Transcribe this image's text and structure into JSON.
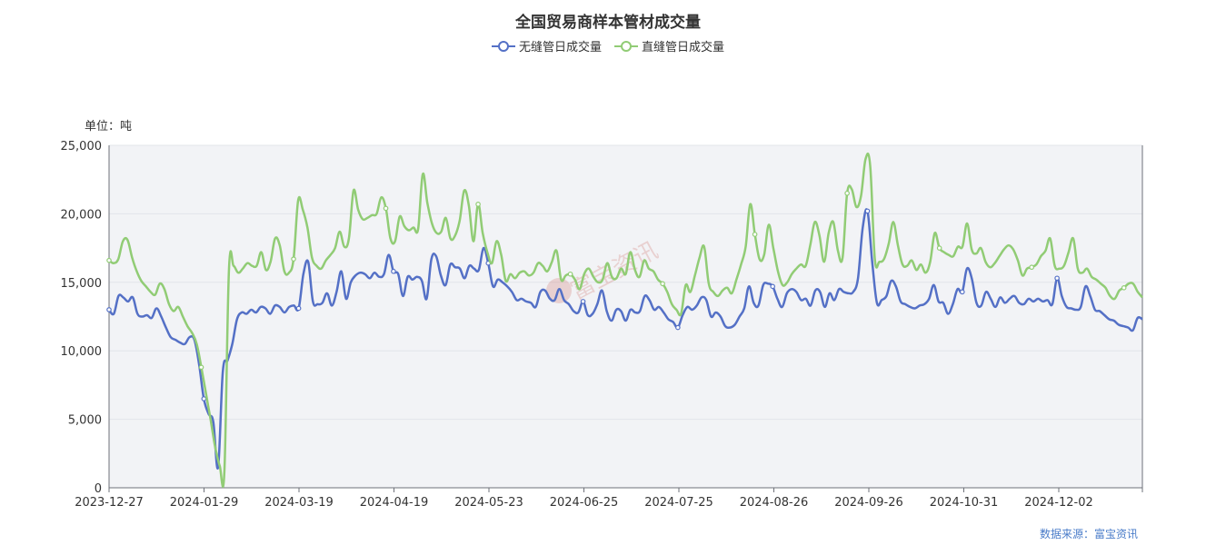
{
  "chart_title": "全国贸易商样本管材成交量",
  "unit_label": "单位：吨",
  "source_label": "数据来源：富宝资讯",
  "watermark": "富宝资讯",
  "chart_data": {
    "type": "line",
    "title": "全国贸易商样本管材成交量",
    "ylabel": "单位：吨",
    "xlabel": "",
    "ylim": [
      0,
      25000
    ],
    "yticks": [
      0,
      5000,
      10000,
      15000,
      20000,
      25000
    ],
    "ytick_labels": [
      "0",
      "5,000",
      "10,000",
      "15,000",
      "20,000",
      "25,000"
    ],
    "xticks": [
      "2023-12-27",
      "2024-01-29",
      "2024-03-19",
      "2024-04-19",
      "2024-05-23",
      "2024-06-25",
      "2024-07-25",
      "2024-08-26",
      "2024-09-26",
      "2024-10-31",
      "2024-12-02"
    ],
    "grid": true,
    "legend_position": "top-center",
    "series": [
      {
        "name": "无缝管日成交量",
        "color": "#5470c6",
        "values": [
          13000,
          12700,
          14000,
          13900,
          13600,
          13900,
          12700,
          12500,
          12600,
          12400,
          13100,
          12500,
          11700,
          11000,
          10800,
          10600,
          10500,
          11000,
          10800,
          9000,
          6500,
          5400,
          4800,
          1500,
          8500,
          9300,
          10500,
          12300,
          12800,
          12700,
          13000,
          12800,
          13200,
          13100,
          12700,
          13300,
          13200,
          12800,
          13200,
          13300,
          13100,
          15600,
          16500,
          13600,
          13400,
          13500,
          14200,
          13300,
          14300,
          15800,
          13800,
          15000,
          15500,
          15700,
          15600,
          15300,
          15700,
          15400,
          15600,
          17000,
          15800,
          15600,
          14000,
          15400,
          15200,
          15400,
          15100,
          13800,
          16700,
          16900,
          15500,
          14800,
          16300,
          16100,
          16000,
          15300,
          16200,
          16000,
          15900,
          17500,
          16400,
          14700,
          15200,
          15000,
          14700,
          14300,
          13700,
          13800,
          13600,
          13500,
          13200,
          14300,
          14400,
          13800,
          13700,
          14500,
          13700,
          13400,
          12900,
          12800,
          13600,
          12600,
          12700,
          13400,
          14400,
          12900,
          12200,
          13000,
          12900,
          12200,
          13000,
          12800,
          12900,
          14000,
          13700,
          13000,
          13200,
          12800,
          12300,
          12100,
          11700,
          12600,
          13200,
          13000,
          13300,
          13900,
          13700,
          12500,
          12800,
          12500,
          11800,
          11700,
          11900,
          12500,
          13100,
          14700,
          13500,
          13300,
          14800,
          14900,
          14700,
          13800,
          13200,
          14200,
          14500,
          14300,
          13700,
          13800,
          13300,
          14400,
          14300,
          13200,
          14200,
          13700,
          14500,
          14300,
          14200,
          14300,
          15300,
          19000,
          20200,
          16500,
          13500,
          13700,
          14000,
          15100,
          14700,
          13600,
          13400,
          13200,
          13100,
          13300,
          13400,
          13800,
          14800,
          13600,
          13500,
          12700,
          13400,
          14500,
          14300,
          16000,
          15300,
          13500,
          13300,
          14300,
          13800,
          13200,
          13900,
          13500,
          13800,
          14000,
          13500,
          13400,
          13800,
          13600,
          13800,
          13600,
          13700,
          13400,
          15300,
          14000,
          13200,
          13100,
          13000,
          13200,
          14700,
          14000,
          13000,
          12900,
          12600,
          12300,
          12200,
          11900,
          11800,
          11700,
          11500,
          12400,
          12300
        ]
      },
      {
        "name": "直缝管日成交量",
        "color": "#91cc75",
        "values": [
          16600,
          16400,
          16700,
          18000,
          18100,
          16800,
          15800,
          15100,
          14700,
          14300,
          14100,
          14900,
          14500,
          13400,
          12900,
          13200,
          12500,
          11800,
          11300,
          10500,
          8800,
          6900,
          5000,
          3000,
          1600,
          1200,
          16000,
          16200,
          15700,
          16000,
          16400,
          16200,
          16200,
          17200,
          15900,
          16500,
          18200,
          17700,
          15800,
          15700,
          16700,
          21000,
          20300,
          19000,
          16800,
          16200,
          16000,
          16600,
          17000,
          17500,
          18700,
          17600,
          18200,
          21700,
          20300,
          19600,
          19700,
          19900,
          20000,
          21200,
          20400,
          18200,
          18000,
          19800,
          19100,
          18800,
          19000,
          18900,
          22900,
          20800,
          19300,
          18600,
          18700,
          19700,
          18200,
          18400,
          19500,
          21700,
          20600,
          18000,
          20700,
          18600,
          17200,
          16400,
          18000,
          17000,
          15100,
          15600,
          15300,
          15700,
          15800,
          15500,
          15700,
          16400,
          16200,
          15800,
          16500,
          17300,
          15200,
          15500,
          15600,
          15200,
          14500,
          15600,
          16000,
          15400,
          15000,
          15200,
          16400,
          15400,
          15300,
          16000,
          15600,
          17200,
          15900,
          15400,
          16600,
          16000,
          15800,
          15200,
          14900,
          14300,
          13400,
          13000,
          12700,
          14800,
          14300,
          15500,
          16800,
          17600,
          14900,
          14300,
          14000,
          14400,
          14600,
          14200,
          15200,
          16300,
          17600,
          20700,
          18500,
          16700,
          17000,
          19200,
          17500,
          15800,
          14800,
          15000,
          15600,
          16000,
          16300,
          16200,
          17700,
          19400,
          18400,
          16500,
          18600,
          19400,
          17300,
          16800,
          21500,
          21800,
          20500,
          21300,
          24000,
          23500,
          16700,
          16500,
          16700,
          17800,
          19400,
          17700,
          16300,
          16200,
          16600,
          15900,
          16300,
          15700,
          16500,
          18600,
          17500,
          17200,
          17000,
          16900,
          17600,
          17600,
          19300,
          17400,
          17100,
          17500,
          16500,
          16100,
          16400,
          16900,
          17400,
          17700,
          17400,
          16600,
          15500,
          16000,
          16100,
          16300,
          16900,
          17300,
          18200,
          16200,
          16000,
          16200,
          17200,
          18200,
          16000,
          15700,
          16000,
          15400,
          15200,
          14900,
          14600,
          14000,
          13800,
          14400,
          14600,
          14900,
          14900,
          14300,
          13900
        ]
      }
    ]
  }
}
